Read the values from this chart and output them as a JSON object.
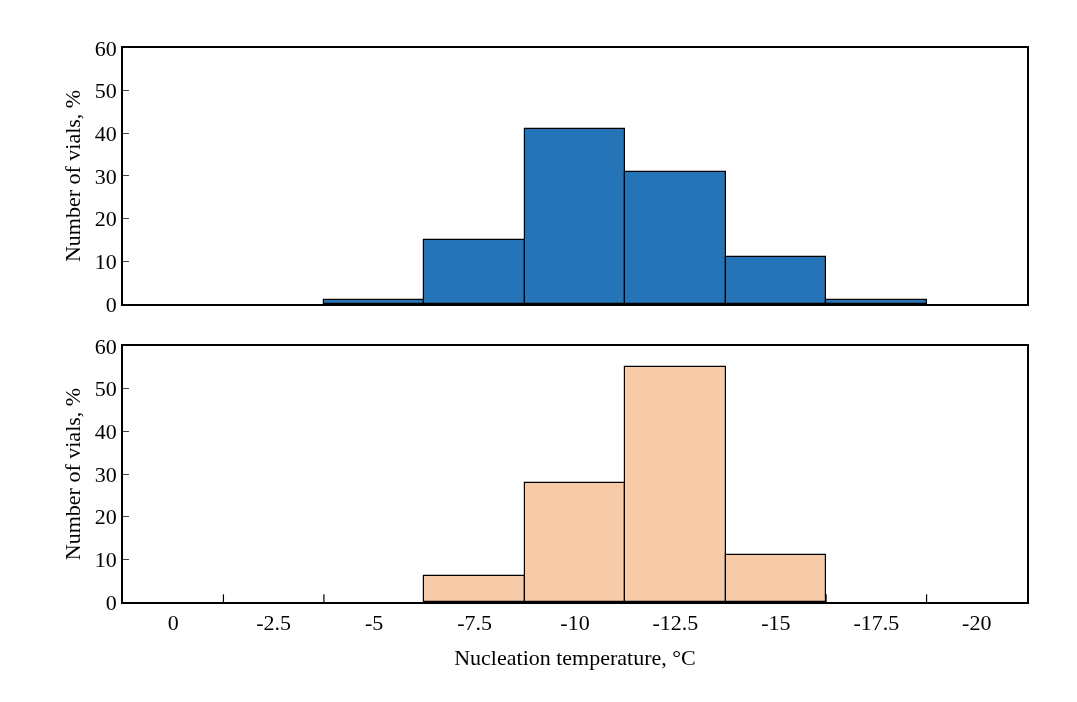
{
  "chart_data": [
    {
      "type": "bar",
      "ylabel": "Number of vials, %",
      "categories": [
        "0",
        "-2.5",
        "-5",
        "-7.5",
        "-10",
        "-12.5",
        "-15",
        "-17.5",
        "-20"
      ],
      "series": [
        {
          "color": "#2574b8",
          "values": [
            0,
            0,
            1,
            15,
            41,
            31,
            11,
            1,
            0
          ]
        }
      ],
      "ylim": [
        0,
        60
      ],
      "yticks": [
        0,
        10,
        20,
        30,
        40,
        50,
        60
      ],
      "tick_labels": "y"
    },
    {
      "type": "bar",
      "xlabel": "Nucleation temperature, °C",
      "ylabel": "Number of vials, %",
      "categories": [
        "0",
        "-2.5",
        "-5",
        "-7.5",
        "-10",
        "-12.5",
        "-15",
        "-17.5",
        "-20"
      ],
      "series": [
        {
          "color": "#f8cba8",
          "values": [
            0,
            0,
            0,
            6,
            28,
            55,
            11,
            0,
            0
          ]
        }
      ],
      "ylim": [
        0,
        60
      ],
      "yticks": [
        0,
        10,
        20,
        30,
        40,
        50,
        60
      ]
    }
  ]
}
